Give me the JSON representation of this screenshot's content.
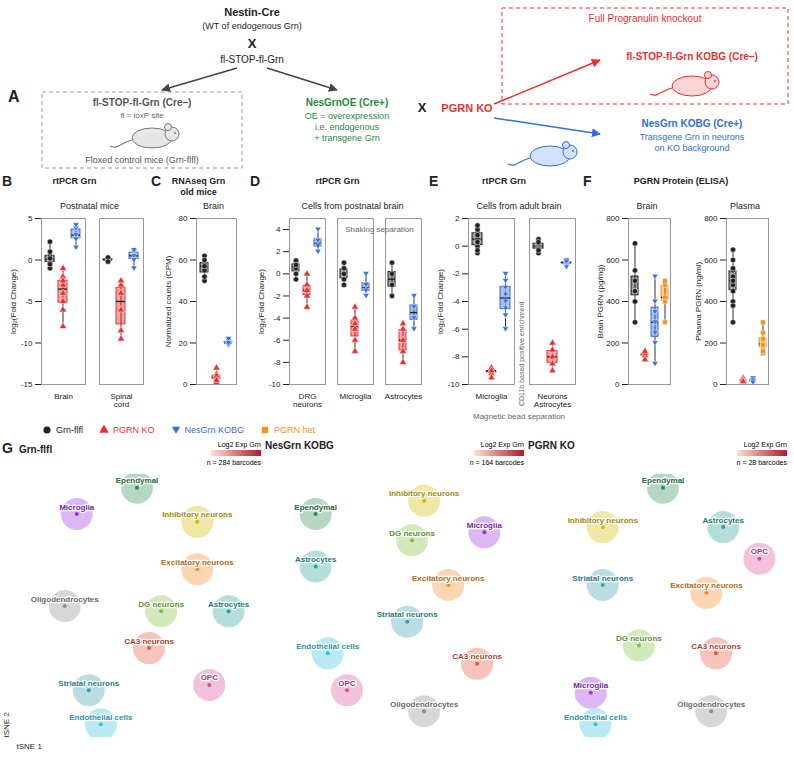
{
  "diagram": {
    "panel": "A",
    "parent": {
      "label": "Nestin-Cre",
      "note": "(WT of endogenous Grn)"
    },
    "cross": "X",
    "partner": "fl-STOP-fl-Grn",
    "control": {
      "label": "fl-STOP-fl-Grn (Cre–)",
      "note": "fl = loxP site",
      "caption": "Floxed control mice (Grn-flfl)"
    },
    "overexpressor": {
      "label": "NesGrnOE (Cre+)",
      "notes": [
        "OE = overexpression",
        "i.e. endogenous",
        "+ transgene Grn"
      ]
    },
    "knockout": "PGRN KO",
    "box_title": "Full Progranulin knockout",
    "offspring": [
      {
        "label": "fl-STOP-fl-Grn KOBG (Cre–)",
        "color": "#e8312f",
        "notes": []
      },
      {
        "label": "NesGrn KOBG (Cre+)",
        "color": "#2f6fd6",
        "notes": [
          "Transgene Grn in neurons",
          "on KO background"
        ]
      }
    ]
  },
  "chart_data": [
    {
      "panel": "B",
      "type": "box",
      "title": "rtPCR Grn",
      "subtitle": "Postnatal mice",
      "y_label": "log₂(Fold Change)",
      "ylim": [
        -15,
        5
      ],
      "yticks": [
        -15,
        -10,
        -5,
        0,
        5
      ],
      "legend": "bottom",
      "categories": [
        "Brain",
        "Spinal cord"
      ],
      "series": [
        {
          "name": "Grn-flfl",
          "color": "#222222",
          "marker": "circle",
          "values": [
            [
              0.5,
              0,
              -0.3,
              -1,
              0.2,
              -0.5,
              1,
              2.2
            ],
            [
              0,
              0.2,
              -0.1,
              0.3,
              -0.2
            ]
          ]
        },
        {
          "name": "PGRN KO",
          "color": "#e8312f",
          "marker": "triangle",
          "values": [
            [
              -2,
              -3,
              -4,
              -5,
              -8,
              -2.5,
              -1,
              -6
            ],
            [
              -3,
              -4,
              -6,
              -8.5,
              -9.5,
              -2.5
            ]
          ]
        },
        {
          "name": "NesGrn KOBG",
          "color": "#3a6fd8",
          "marker": "triangle-down",
          "values": [
            [
              3.8,
              3,
              2.5,
              4.2,
              1.5
            ],
            [
              0.5,
              0,
              1,
              -1,
              1.2
            ]
          ]
        }
      ]
    },
    {
      "panel": "C",
      "type": "box",
      "title": "RNAseq Grn old mice",
      "subtitle": "Brain",
      "y_label": "Normalized counts (CPM)",
      "ylim": [
        0,
        80
      ],
      "yticks": [
        0,
        20,
        40,
        60,
        80
      ],
      "legend": "bottom",
      "categories": [
        null
      ],
      "series": [
        {
          "name": "Grn-flfl",
          "color": "#222222",
          "marker": "circle",
          "values": [
            [
              62,
              58,
              55,
              60,
              50,
              52,
              57
            ]
          ]
        },
        {
          "name": "PGRN KO",
          "color": "#e8312f",
          "marker": "triangle",
          "values": [
            [
              1,
              3,
              5,
              8,
              4,
              2
            ]
          ]
        },
        {
          "name": "NesGrn KOBG",
          "color": "#3a6fd8",
          "marker": "triangle-down",
          "values": [
            [
              20,
              21,
              22,
              19,
              20
            ]
          ]
        }
      ]
    },
    {
      "panel": "D",
      "type": "box",
      "title": "rtPCR Grn",
      "subtitle": "Cells from postnatal brain",
      "y_label": "log₂(Fold Change)",
      "annotation_top": "Shaking separation",
      "ylim": [
        -10,
        5
      ],
      "yticks": [
        -10,
        -8,
        -6,
        -4,
        -2,
        0,
        2,
        4
      ],
      "legend": "bottom",
      "categories": [
        "DRG neurons",
        "Microglia",
        "Astrocytes"
      ],
      "series": [
        {
          "name": "Grn-flfl",
          "color": "#222222",
          "marker": "circle",
          "values": [
            [
              0.5,
              1,
              0,
              1.2,
              -0.5,
              0.8
            ],
            [
              0.5,
              0,
              -1,
              1,
              -0.5
            ],
            [
              0,
              -1,
              -2,
              1
            ]
          ]
        },
        {
          "name": "PGRN KO",
          "color": "#e8312f",
          "marker": "triangle",
          "values": [
            [
              -1,
              0,
              -2,
              -3,
              -1.5
            ],
            [
              -3,
              -4,
              -5,
              -6,
              -7,
              -4.5
            ],
            [
              -5,
              -6,
              -8,
              -7,
              -4.5
            ]
          ]
        },
        {
          "name": "NesGrn KOBG",
          "color": "#3a6fd8",
          "marker": "triangle-down",
          "values": [
            [
              3,
              4,
              2.5,
              2
            ],
            [
              -1,
              -2,
              -1.5,
              0
            ],
            [
              -2,
              -3,
              -4,
              -5
            ]
          ]
        }
      ]
    },
    {
      "panel": "E",
      "type": "box",
      "title": "rtPCR Grn",
      "subtitle": "Cells from adult brain",
      "y_label": "log₂(Fold Change)",
      "annotation_divider": "CD11b based positive enrichment",
      "annotation_bottom": "Magnetic bead separation",
      "ylim": [
        -10,
        2
      ],
      "yticks": [
        -10,
        -8,
        -6,
        -4,
        -2,
        0,
        2
      ],
      "legend": "bottom",
      "categories": [
        "Microglia",
        "Neurons Astrocytes"
      ],
      "series": [
        {
          "name": "Grn-flfl",
          "color": "#222222",
          "marker": "circle",
          "values": [
            [
              1,
              0.5,
              0,
              -0.5,
              1.2,
              0.3,
              -0.3,
              0.8,
              1.5
            ],
            [
              0,
              -0.5,
              0.5,
              -0.2,
              -0.3,
              0.2,
              0.3
            ]
          ]
        },
        {
          "name": "PGRN KO",
          "color": "#e8312f",
          "marker": "triangle",
          "values": [
            [
              -9,
              -9.2,
              -8.8,
              -9.5,
              -9
            ],
            [
              -7,
              -8,
              -8.5,
              -7.5,
              -9
            ]
          ]
        },
        {
          "name": "NesGrn KOBG",
          "color": "#3a6fd8",
          "marker": "triangle-down",
          "values": [
            [
              -2,
              -3,
              -4,
              -5,
              -6,
              -4.5,
              -3.5,
              -2.5
            ],
            [
              -1,
              -1.3,
              -1.5,
              -1.2,
              -1.1
            ]
          ]
        }
      ]
    },
    {
      "panel": "F",
      "type": "box",
      "title": "PGRN Protein (ELISA)",
      "subtitle": "Brain",
      "y_label": "Brain PGRN (pg/mg)",
      "ylim": [
        0,
        800
      ],
      "yticks": [
        0,
        200,
        400,
        600,
        800
      ],
      "legend": "bottom",
      "categories": [
        null
      ],
      "series": [
        {
          "name": "Grn-flfl",
          "color": "#222222",
          "marker": "circle",
          "values": [
            [
              680,
              550,
              400,
              450,
              300,
              450,
              500
            ]
          ]
        },
        {
          "name": "PGRN KO",
          "color": "#e8312f",
          "marker": "triangle",
          "values": [
            [
              140,
              120,
              150,
              160
            ]
          ]
        },
        {
          "name": "NesGrn KOBG",
          "color": "#3a6fd8",
          "marker": "triangle-down",
          "values": [
            [
              300,
              400,
              200,
              350,
              250,
              100,
              520
            ]
          ]
        },
        {
          "name": "PGRN het",
          "color": "#f5901e",
          "marker": "square",
          "values": [
            [
              400,
              480,
              300,
              500,
              420
            ]
          ]
        }
      ]
    },
    {
      "panel": "F",
      "type": "box",
      "subtitle": "Plasma",
      "y_label": "Plasma PGRN (ng/ml)",
      "ylim": [
        0,
        800
      ],
      "yticks": [
        0,
        200,
        400,
        600,
        800
      ],
      "legend": "bottom",
      "categories": [
        null
      ],
      "series": [
        {
          "name": "Grn-flfl",
          "color": "#222222",
          "marker": "circle",
          "values": [
            [
              450,
              500,
              550,
              600,
              520,
              480,
              400,
              380,
              650,
              480,
              500,
              300,
              560
            ]
          ]
        },
        {
          "name": "PGRN KO",
          "color": "#e8312f",
          "marker": "triangle",
          "values": [
            [
              10,
              20,
              15,
              25,
              30,
              20,
              15
            ]
          ]
        },
        {
          "name": "NesGrn KOBG",
          "color": "#3a6fd8",
          "marker": "triangle-down",
          "values": [
            [
              20,
              25,
              15,
              30,
              20,
              10
            ]
          ]
        },
        {
          "name": "PGRN het",
          "color": "#f5901e",
          "marker": "square",
          "values": [
            [
              150,
              200,
              250,
              180,
              220,
              300,
              160,
              190
            ]
          ]
        }
      ]
    },
    {
      "panel": "G",
      "type": "scatter",
      "title": "Grn-flfl",
      "x_label": "tSNE 1",
      "y_label": "tSNE 2",
      "xlim": [
        -50,
        50
      ],
      "ylim": [
        -50,
        50
      ],
      "tick_labels": false,
      "colorbar": {
        "title": "Log2 Exp Grn",
        "color_range": [
          "#fde0d0",
          "#b2182b"
        ],
        "note": "n = 284 barcodes"
      },
      "clusters": [
        {
          "label": "Oligodendrocytes",
          "x": -30,
          "y": 0,
          "color": "#8c8c8c"
        },
        {
          "label": "Microglia",
          "x": -25,
          "y": 35,
          "color": "#9b30d9"
        },
        {
          "label": "Ependymal",
          "x": 0,
          "y": 45,
          "color": "#2e8b57"
        },
        {
          "label": "Inhibitory neurons",
          "x": 25,
          "y": 32,
          "color": "#d4b800"
        },
        {
          "label": "Excitatory neurons",
          "x": 25,
          "y": 14,
          "color": "#f08a24"
        },
        {
          "label": "DG neurons",
          "x": 10,
          "y": -2,
          "color": "#7fbf3f"
        },
        {
          "label": "Astrocytes",
          "x": 38,
          "y": -2,
          "color": "#2aa198"
        },
        {
          "label": "CA3 neurons",
          "x": 5,
          "y": -16,
          "color": "#e6553a"
        },
        {
          "label": "Striatal neurons",
          "x": -20,
          "y": -32,
          "color": "#3a9fb0"
        },
        {
          "label": "OPC",
          "x": 30,
          "y": -30,
          "color": "#d94f9c"
        },
        {
          "label": "Endothelial cells",
          "x": -15,
          "y": -45,
          "color": "#39c0e0"
        }
      ]
    },
    {
      "type": "scatter",
      "title": "NesGrn KOBG",
      "xlim": [
        -50,
        50
      ],
      "ylim": [
        -50,
        50
      ],
      "tick_labels": false,
      "colorbar": {
        "title": "Log2 Exp Grn",
        "color_range": [
          "#fde0d0",
          "#b2182b"
        ],
        "note": "n = 164 barcodes"
      },
      "clusters": [
        {
          "label": "Ependymal",
          "x": -35,
          "y": 35,
          "color": "#2e8b57"
        },
        {
          "label": "Astrocytes",
          "x": -35,
          "y": 15,
          "color": "#2aa198"
        },
        {
          "label": "Inhibitory neurons",
          "x": 10,
          "y": 40,
          "color": "#d4b800"
        },
        {
          "label": "DG neurons",
          "x": 5,
          "y": 25,
          "color": "#7fbf3f"
        },
        {
          "label": "Microglia",
          "x": 35,
          "y": 28,
          "color": "#9b30d9"
        },
        {
          "label": "Excitatory neurons",
          "x": 20,
          "y": 8,
          "color": "#f08a24"
        },
        {
          "label": "Striatal neurons",
          "x": 3,
          "y": -6,
          "color": "#3a9fb0"
        },
        {
          "label": "Endothelial cells",
          "x": -30,
          "y": -18,
          "color": "#39c0e0"
        },
        {
          "label": "CA3 neurons",
          "x": 32,
          "y": -22,
          "color": "#e6553a"
        },
        {
          "label": "OPC",
          "x": -22,
          "y": -32,
          "color": "#d94f9c"
        },
        {
          "label": "Oligodendrocytes",
          "x": 10,
          "y": -40,
          "color": "#8c8c8c"
        }
      ]
    },
    {
      "type": "scatter",
      "title": "PGRN KO",
      "xlim": [
        -50,
        50
      ],
      "ylim": [
        -50,
        50
      ],
      "tick_labels": false,
      "colorbar": {
        "title": "Log2 Exp Grn",
        "color_range": [
          "#fde0d0",
          "#b2182b"
        ],
        "note": "n = 28 barcodes"
      },
      "clusters": [
        {
          "label": "Ependymal",
          "x": 0,
          "y": 45,
          "color": "#2e8b57"
        },
        {
          "label": "Inhibitory neurons",
          "x": -25,
          "y": 30,
          "color": "#d4b800"
        },
        {
          "label": "Astrocytes",
          "x": 25,
          "y": 30,
          "color": "#2aa198"
        },
        {
          "label": "OPC",
          "x": 40,
          "y": 18,
          "color": "#d94f9c"
        },
        {
          "label": "Striatal neurons",
          "x": -25,
          "y": 8,
          "color": "#3a9fb0"
        },
        {
          "label": "Excitatory neurons",
          "x": 18,
          "y": 5,
          "color": "#f08a24"
        },
        {
          "label": "DG neurons",
          "x": -10,
          "y": -15,
          "color": "#7fbf3f"
        },
        {
          "label": "CA3 neurons",
          "x": 22,
          "y": -18,
          "color": "#e6553a"
        },
        {
          "label": "Microglia",
          "x": -30,
          "y": -33,
          "color": "#9b30d9"
        },
        {
          "label": "Endothelial cells",
          "x": -28,
          "y": -45,
          "color": "#39c0e0"
        },
        {
          "label": "Oligodendrocytes",
          "x": 20,
          "y": -40,
          "color": "#8c8c8c"
        }
      ]
    }
  ]
}
